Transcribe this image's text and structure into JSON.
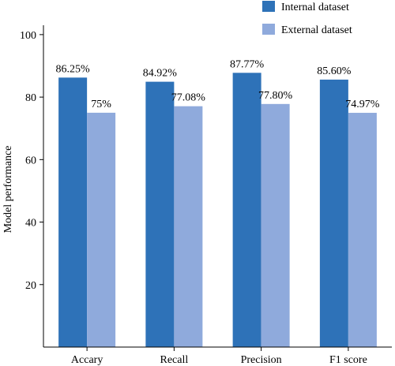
{
  "chart_data": {
    "type": "bar",
    "categories": [
      "Accary",
      "Recall",
      "Precision",
      "F1 score"
    ],
    "series": [
      {
        "name": "Internal dataset",
        "color": "#2e72b8",
        "values": [
          86.25,
          84.92,
          87.77,
          85.6
        ],
        "labels": [
          "86.25%",
          "84.92%",
          "87.77%",
          "85.60%"
        ]
      },
      {
        "name": "External dataset",
        "color": "#8faadc",
        "values": [
          75,
          77.08,
          77.8,
          74.97
        ],
        "labels": [
          "75%",
          "77.08%",
          "77.80%",
          "74.97%"
        ]
      }
    ],
    "ylabel": "Model performance",
    "ylim": [
      0,
      103
    ],
    "yticks": [
      20,
      40,
      60,
      80,
      100
    ],
    "grid": false,
    "legend": "top-right"
  }
}
